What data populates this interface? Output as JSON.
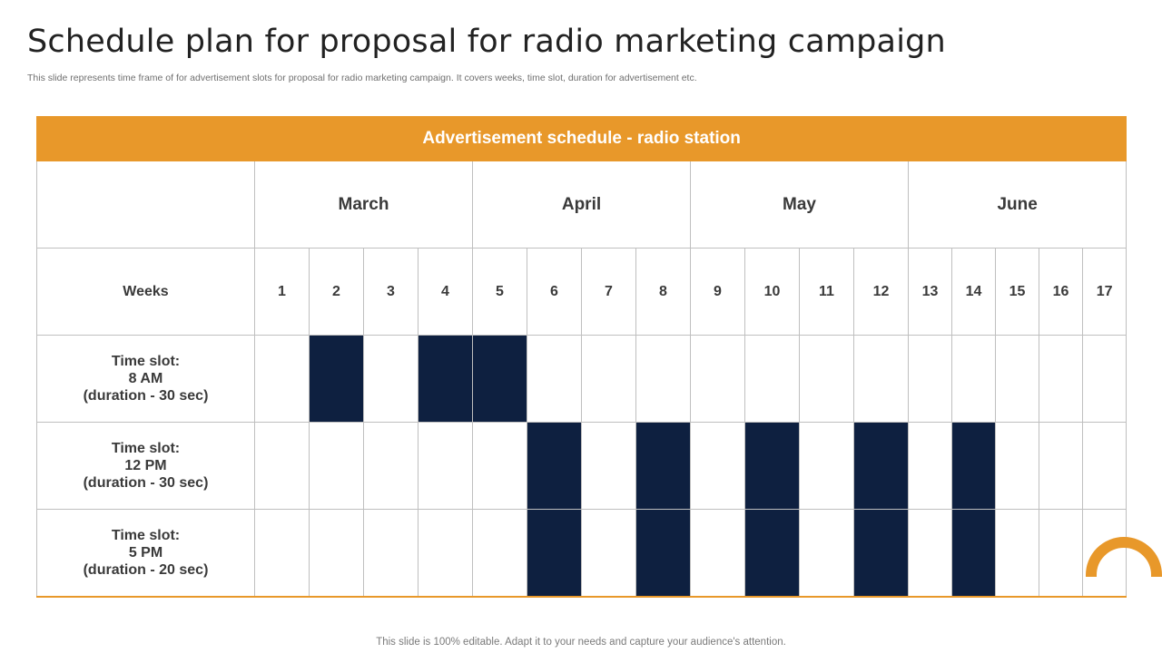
{
  "title": "Schedule plan for proposal for radio marketing campaign",
  "subtitle": "This slide represents time frame of for advertisement slots for proposal for radio marketing campaign. It covers weeks, time slot, duration for advertisement etc.",
  "table": {
    "header": "Advertisement schedule - radio station",
    "months": [
      "March",
      "April",
      "May",
      "June"
    ],
    "weeks_label": "Weeks",
    "weeks": [
      "1",
      "2",
      "3",
      "4",
      "5",
      "6",
      "7",
      "8",
      "9",
      "10",
      "11",
      "12",
      "13",
      "14",
      "15",
      "16",
      "17"
    ],
    "slots": [
      {
        "line1": "Time slot:",
        "line2": "8 AM",
        "line3": "(duration - 30 sec)",
        "scheduled_weeks": [
          2,
          4,
          5
        ]
      },
      {
        "line1": "Time slot:",
        "line2": "12 PM",
        "line3": "(duration - 30 sec)",
        "scheduled_weeks": [
          6,
          8,
          10,
          12,
          14
        ]
      },
      {
        "line1": "Time slot:",
        "line2": "5 PM",
        "line3": "(duration - 20 sec)",
        "scheduled_weeks": [
          6,
          8,
          10,
          12,
          14
        ]
      }
    ]
  },
  "footer": "This slide is 100% editable. Adapt it to your needs and capture your audience's attention.",
  "colors": {
    "accent": "#e8982a",
    "filled": "#0e2040"
  }
}
